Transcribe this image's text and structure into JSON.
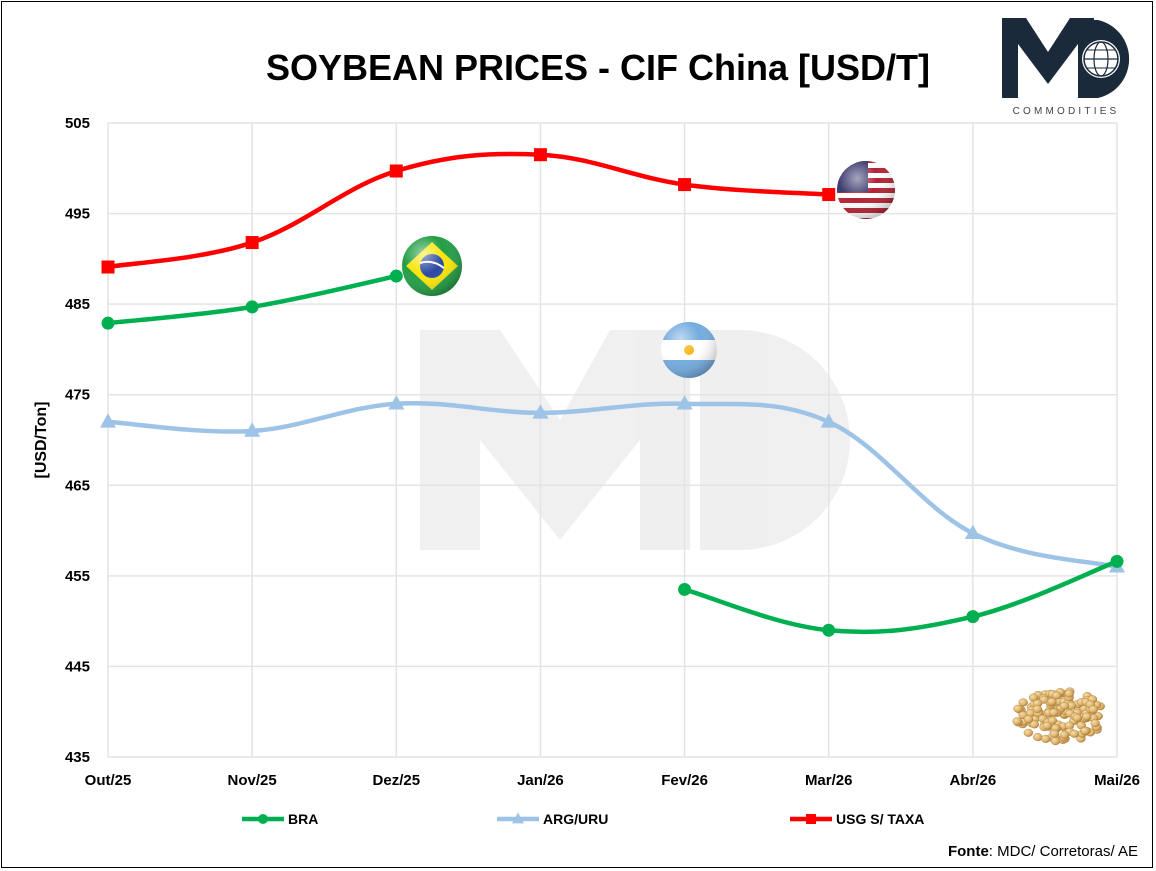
{
  "chart_data": {
    "type": "line",
    "title": "SOYBEAN PRICES - CIF China [USD/T]",
    "ylabel": "[USD/Ton]",
    "xlabel": "",
    "ylim": [
      435,
      505
    ],
    "yticks": [
      435,
      445,
      455,
      465,
      475,
      485,
      495,
      505
    ],
    "categories": [
      "Out/25",
      "Nov/25",
      "Dez/25",
      "Jan/26",
      "Fev/26",
      "Mar/26",
      "Abr/26",
      "Mai/26"
    ],
    "series": [
      {
        "name": "BRA",
        "color": "#00b050",
        "marker": "circle",
        "values": [
          482.9,
          484.7,
          488.1,
          null,
          453.5,
          449.0,
          450.5,
          456.6
        ]
      },
      {
        "name": "ARG/URU",
        "color": "#9dc3e6",
        "marker": "triangle",
        "values": [
          472.0,
          471.0,
          474.0,
          473.0,
          474.0,
          472.0,
          459.7,
          456.0
        ]
      },
      {
        "name": "USG S/ TAXA",
        "color": "#ff0000",
        "marker": "square",
        "values": [
          489.1,
          491.8,
          499.7,
          501.5,
          498.2,
          497.1,
          null,
          null
        ]
      }
    ],
    "grid": true,
    "legend": "bottom"
  },
  "source": {
    "label": "Fonte",
    "text": ": MDC/ Corretoras/ AE"
  },
  "logo": {
    "letters": "MD",
    "subtitle": "COMMODITIES",
    "color": "#1b2a3a"
  }
}
